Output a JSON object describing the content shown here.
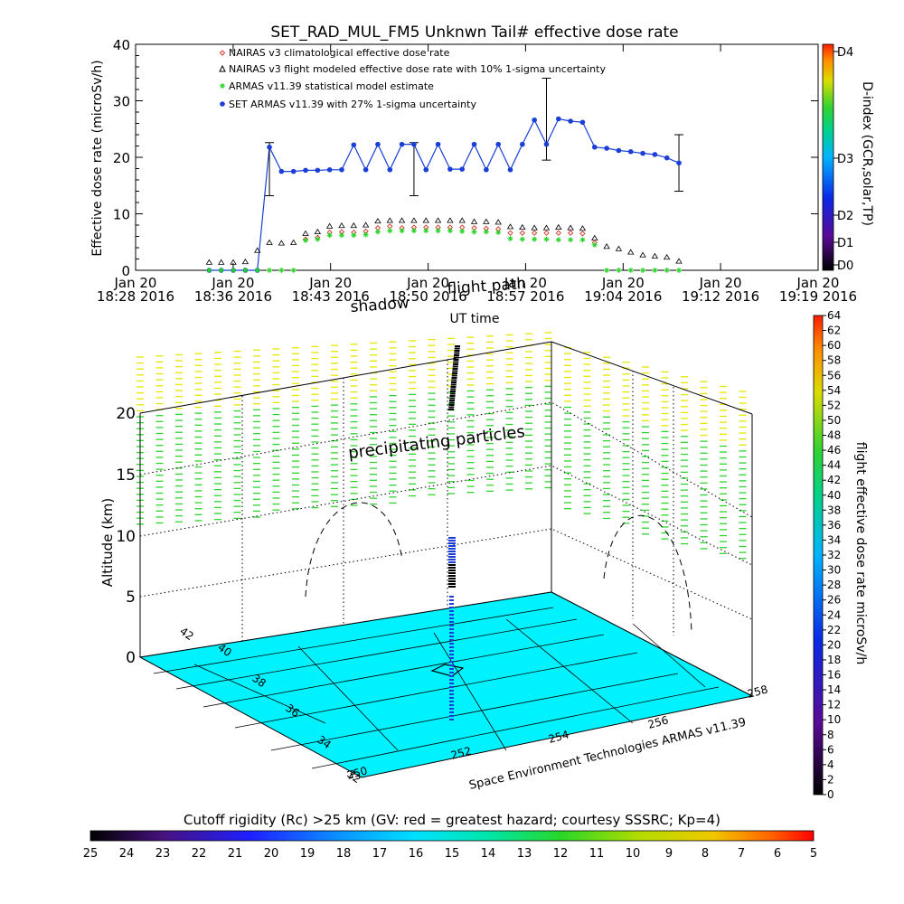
{
  "chart_data": [
    {
      "type": "line",
      "title": "SET_RAD_MUL_FM5 Unknwn Tail#  effective dose rate",
      "ylabel": "Effective dose rate (microSv/h)",
      "xlabel": "UT time",
      "ylim": [
        0,
        40
      ],
      "yticks": [
        "0",
        "10",
        "20",
        "30",
        "40"
      ],
      "xticks": [
        {
          "date": "Jan 20",
          "time": "18:28",
          "year": "2016"
        },
        {
          "date": "Jan 20",
          "time": "18:36",
          "year": "2016"
        },
        {
          "date": "Jan 20",
          "time": "18:43",
          "year": "2016"
        },
        {
          "date": "Jan 20",
          "time": "18:50",
          "year": "2016"
        },
        {
          "date": "Jan 20",
          "time": "18:57",
          "year": "2016"
        },
        {
          "date": "Jan 20",
          "time": "19:04",
          "year": "2016"
        },
        {
          "date": "Jan 20",
          "time": "19:12",
          "year": "2016"
        },
        {
          "date": "Jan 20",
          "time": "19:19",
          "year": "2016"
        }
      ],
      "x_minutes_from_1828": [
        5.5,
        6.4,
        7.3,
        8.2,
        9.1,
        10.0,
        10.9,
        11.8,
        12.7,
        13.6,
        14.5,
        15.4,
        16.3,
        17.2,
        18.1,
        19.0,
        19.9,
        20.8,
        21.7,
        22.6,
        23.5,
        24.4,
        25.3,
        26.2,
        27.1,
        28.0,
        28.9,
        29.8,
        30.7,
        31.6,
        32.5,
        33.4,
        34.3,
        35.2,
        36.1,
        37.0,
        37.9,
        38.8,
        39.7,
        40.6,
        41.5,
        42.4,
        43.3
      ],
      "legend": [
        {
          "label": "NAIRAS v3 climatological effective dose rate",
          "color": "#d23a2a",
          "marker": "diamond"
        },
        {
          "label": "NAIRAS v3 flight modeled effective dose rate with 10% 1-sigma uncertainty",
          "color": "#000000",
          "marker": "triangle"
        },
        {
          "label": "ARMAS v11.39 statistical model estimate",
          "color": "#2bd42b",
          "marker": "asterisk"
        },
        {
          "label": "SET ARMAS v11.39 with 27% 1-sigma uncertainty",
          "color": "#1a3fd6",
          "marker": "dot"
        }
      ],
      "series": [
        {
          "name": "SET ARMAS v11.39 with 27% 1-sigma uncertainty",
          "values": [
            0,
            0,
            0,
            0,
            0,
            21.8,
            17.5,
            17.5,
            17.7,
            17.7,
            17.8,
            17.8,
            22.2,
            17.8,
            22.3,
            17.8,
            22.3,
            22.3,
            17.8,
            22.3,
            17.9,
            17.9,
            22.3,
            17.8,
            22.3,
            17.8,
            22.3,
            26.6,
            22.3,
            26.8,
            26.4,
            26.2,
            21.8,
            21.6,
            21.2,
            21.0,
            20.7,
            20.5,
            19.9,
            19.0,
            null,
            null,
            null
          ]
        },
        {
          "name": "NAIRAS v3 flight modeled effective dose rate with 10% 1-sigma uncertainty",
          "values": [
            0.9,
            0.9,
            0.9,
            1.0,
            3.0,
            4.4,
            4.3,
            4.4,
            6.0,
            6.3,
            7.3,
            7.4,
            7.4,
            7.5,
            8.2,
            8.3,
            8.3,
            8.3,
            8.3,
            8.3,
            8.3,
            8.3,
            8.1,
            8.1,
            8.0,
            7.2,
            7.1,
            7.0,
            7.0,
            7.1,
            7.0,
            6.9,
            5.2,
            3.7,
            3.3,
            2.7,
            2.2,
            2.0,
            1.8,
            1.1,
            null,
            null,
            null
          ]
        },
        {
          "name": "NAIRAS v3 climatological effective dose rate",
          "values": [
            null,
            null,
            null,
            null,
            null,
            null,
            null,
            null,
            5.5,
            5.8,
            6.7,
            6.8,
            6.7,
            6.9,
            7.5,
            7.8,
            7.5,
            7.6,
            7.6,
            7.6,
            7.6,
            7.6,
            7.5,
            7.4,
            7.3,
            6.6,
            6.6,
            6.6,
            6.6,
            6.6,
            6.6,
            6.5,
            4.9,
            null,
            null,
            null,
            null,
            null,
            null,
            null,
            null,
            null,
            null
          ]
        },
        {
          "name": "ARMAS v11.39 statistical model estimate",
          "values": [
            0,
            0,
            0,
            0,
            0,
            0,
            0,
            0,
            5.3,
            5.5,
            6.2,
            6.2,
            6.2,
            6.3,
            6.8,
            7.0,
            7.0,
            7.0,
            7.0,
            7.0,
            7.0,
            6.9,
            6.8,
            6.8,
            6.7,
            5.6,
            5.5,
            5.5,
            5.5,
            5.4,
            5.4,
            5.4,
            4.5,
            0,
            0,
            0,
            0,
            0,
            0,
            0,
            null,
            null,
            null
          ]
        }
      ],
      "error_bars": [
        {
          "x_minutes_from_1828": 10.0,
          "low": 13.2,
          "high": 22.6
        },
        {
          "x_minutes_from_1828": 20.8,
          "low": 13.2,
          "high": 22.6
        },
        {
          "x_minutes_from_1828": 30.7,
          "low": 19.5,
          "high": 34.0
        },
        {
          "x_minutes_from_1828": 40.6,
          "low": 14.0,
          "high": 24.0
        }
      ],
      "right_axis": {
        "label": "D-index (GCR,solar,TP)",
        "ticks": [
          "D0",
          "D1",
          "D2",
          "D3",
          "D4"
        ]
      }
    },
    {
      "type": "scatter",
      "subtype": "3d-altitude-map",
      "zlabel": "Altitude (km)",
      "zticks": [
        "0",
        "5",
        "10",
        "15",
        "20"
      ],
      "lat_ticks": [
        "32",
        "34",
        "36",
        "38",
        "40",
        "42"
      ],
      "lon_ticks": [
        "250",
        "252",
        "254",
        "256",
        "258"
      ],
      "annotations": [
        "flight path",
        "shadow",
        "precipitating particles"
      ],
      "credit": "Space Environment Technologies ARMAS v11.39",
      "colorbar_right": {
        "label": "flight effective dose rate microSv/h",
        "ticks": [
          "0",
          "2",
          "4",
          "6",
          "8",
          "10",
          "12",
          "14",
          "16",
          "18",
          "20",
          "22",
          "24",
          "26",
          "28",
          "30",
          "32",
          "34",
          "36",
          "38",
          "40",
          "42",
          "44",
          "46",
          "48",
          "50",
          "52",
          "54",
          "56",
          "58",
          "60",
          "62",
          "64"
        ]
      },
      "colorbar_bottom": {
        "label": "Cutoff rigidity (Rc) >25 km (GV: red = greatest hazard; courtesy SSSRC; Kp=4)",
        "ticks": [
          "25",
          "24",
          "23",
          "22",
          "21",
          "20",
          "19",
          "18",
          "17",
          "16",
          "15",
          "14",
          "13",
          "12",
          "11",
          "10",
          "9",
          "8",
          "7",
          "6",
          "5"
        ]
      },
      "colors": {
        "ground": "#00f2ff",
        "flight": "#000000",
        "shadow": "#1a3fd6",
        "particles_high": "#e6e600",
        "particles_low": "#2fd42f"
      }
    }
  ]
}
